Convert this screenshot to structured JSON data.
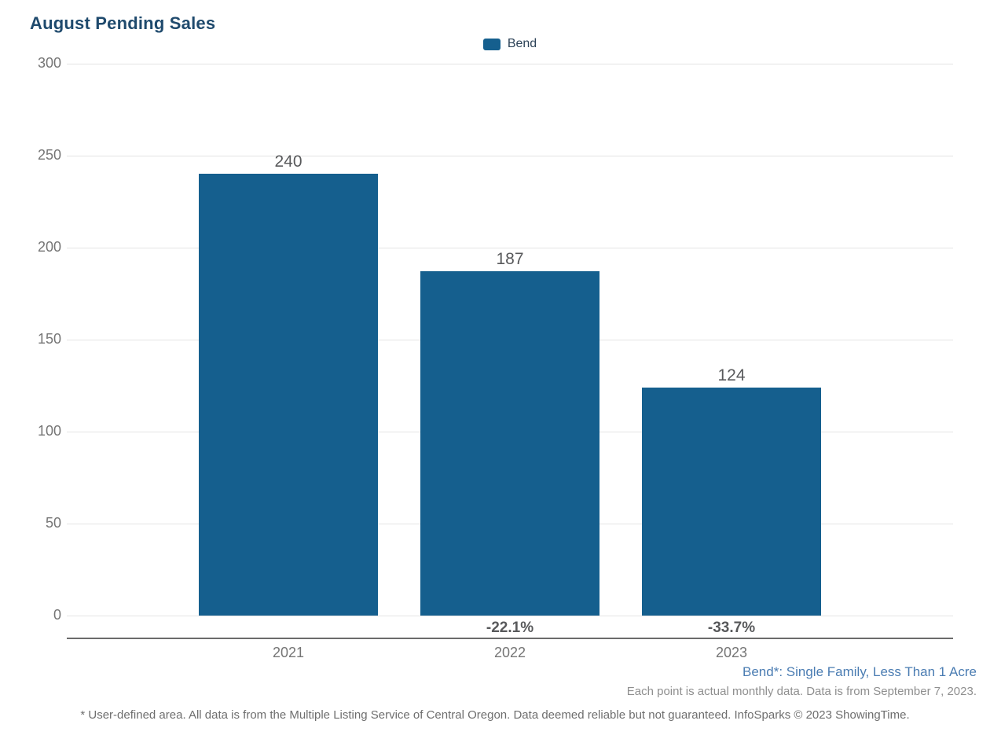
{
  "page": {
    "title": "August Pending Sales"
  },
  "legend": {
    "items": [
      {
        "label": "Bend",
        "color": "#155f8e"
      }
    ]
  },
  "chart_data": {
    "type": "bar",
    "title": "August Pending Sales",
    "categories": [
      "2021",
      "2022",
      "2023"
    ],
    "series": [
      {
        "name": "Bend",
        "color": "#155f8e",
        "values": [
          240,
          187,
          124
        ]
      }
    ],
    "value_labels": [
      "240",
      "187",
      "124"
    ],
    "pct_change_labels": [
      "",
      "-22.1%",
      "-33.7%"
    ],
    "xlabel": "",
    "ylabel": "",
    "ylim": [
      0,
      300
    ],
    "yticks": [
      0,
      50,
      100,
      150,
      200,
      250,
      300
    ],
    "grid": true,
    "legend_position": "top-center"
  },
  "footnotes": {
    "series_definition": "Bend*: Single Family, Less Than 1 Acre",
    "data_note": "Each point is actual monthly data. Data is from September 7, 2023.",
    "disclaimer": "* User-defined area. All data is from the Multiple Listing Service of Central Oregon. Data deemed reliable but not guaranteed. InfoSparks © 2023 ShowingTime."
  },
  "colors": {
    "title": "#1f4a6d",
    "bar": "#155f8e",
    "gridline": "#e4e4e4",
    "axis_line": "#6b6b6b",
    "tick_label": "#757575",
    "value_label": "#58595b",
    "series_footnote": "#4a7cb2"
  }
}
